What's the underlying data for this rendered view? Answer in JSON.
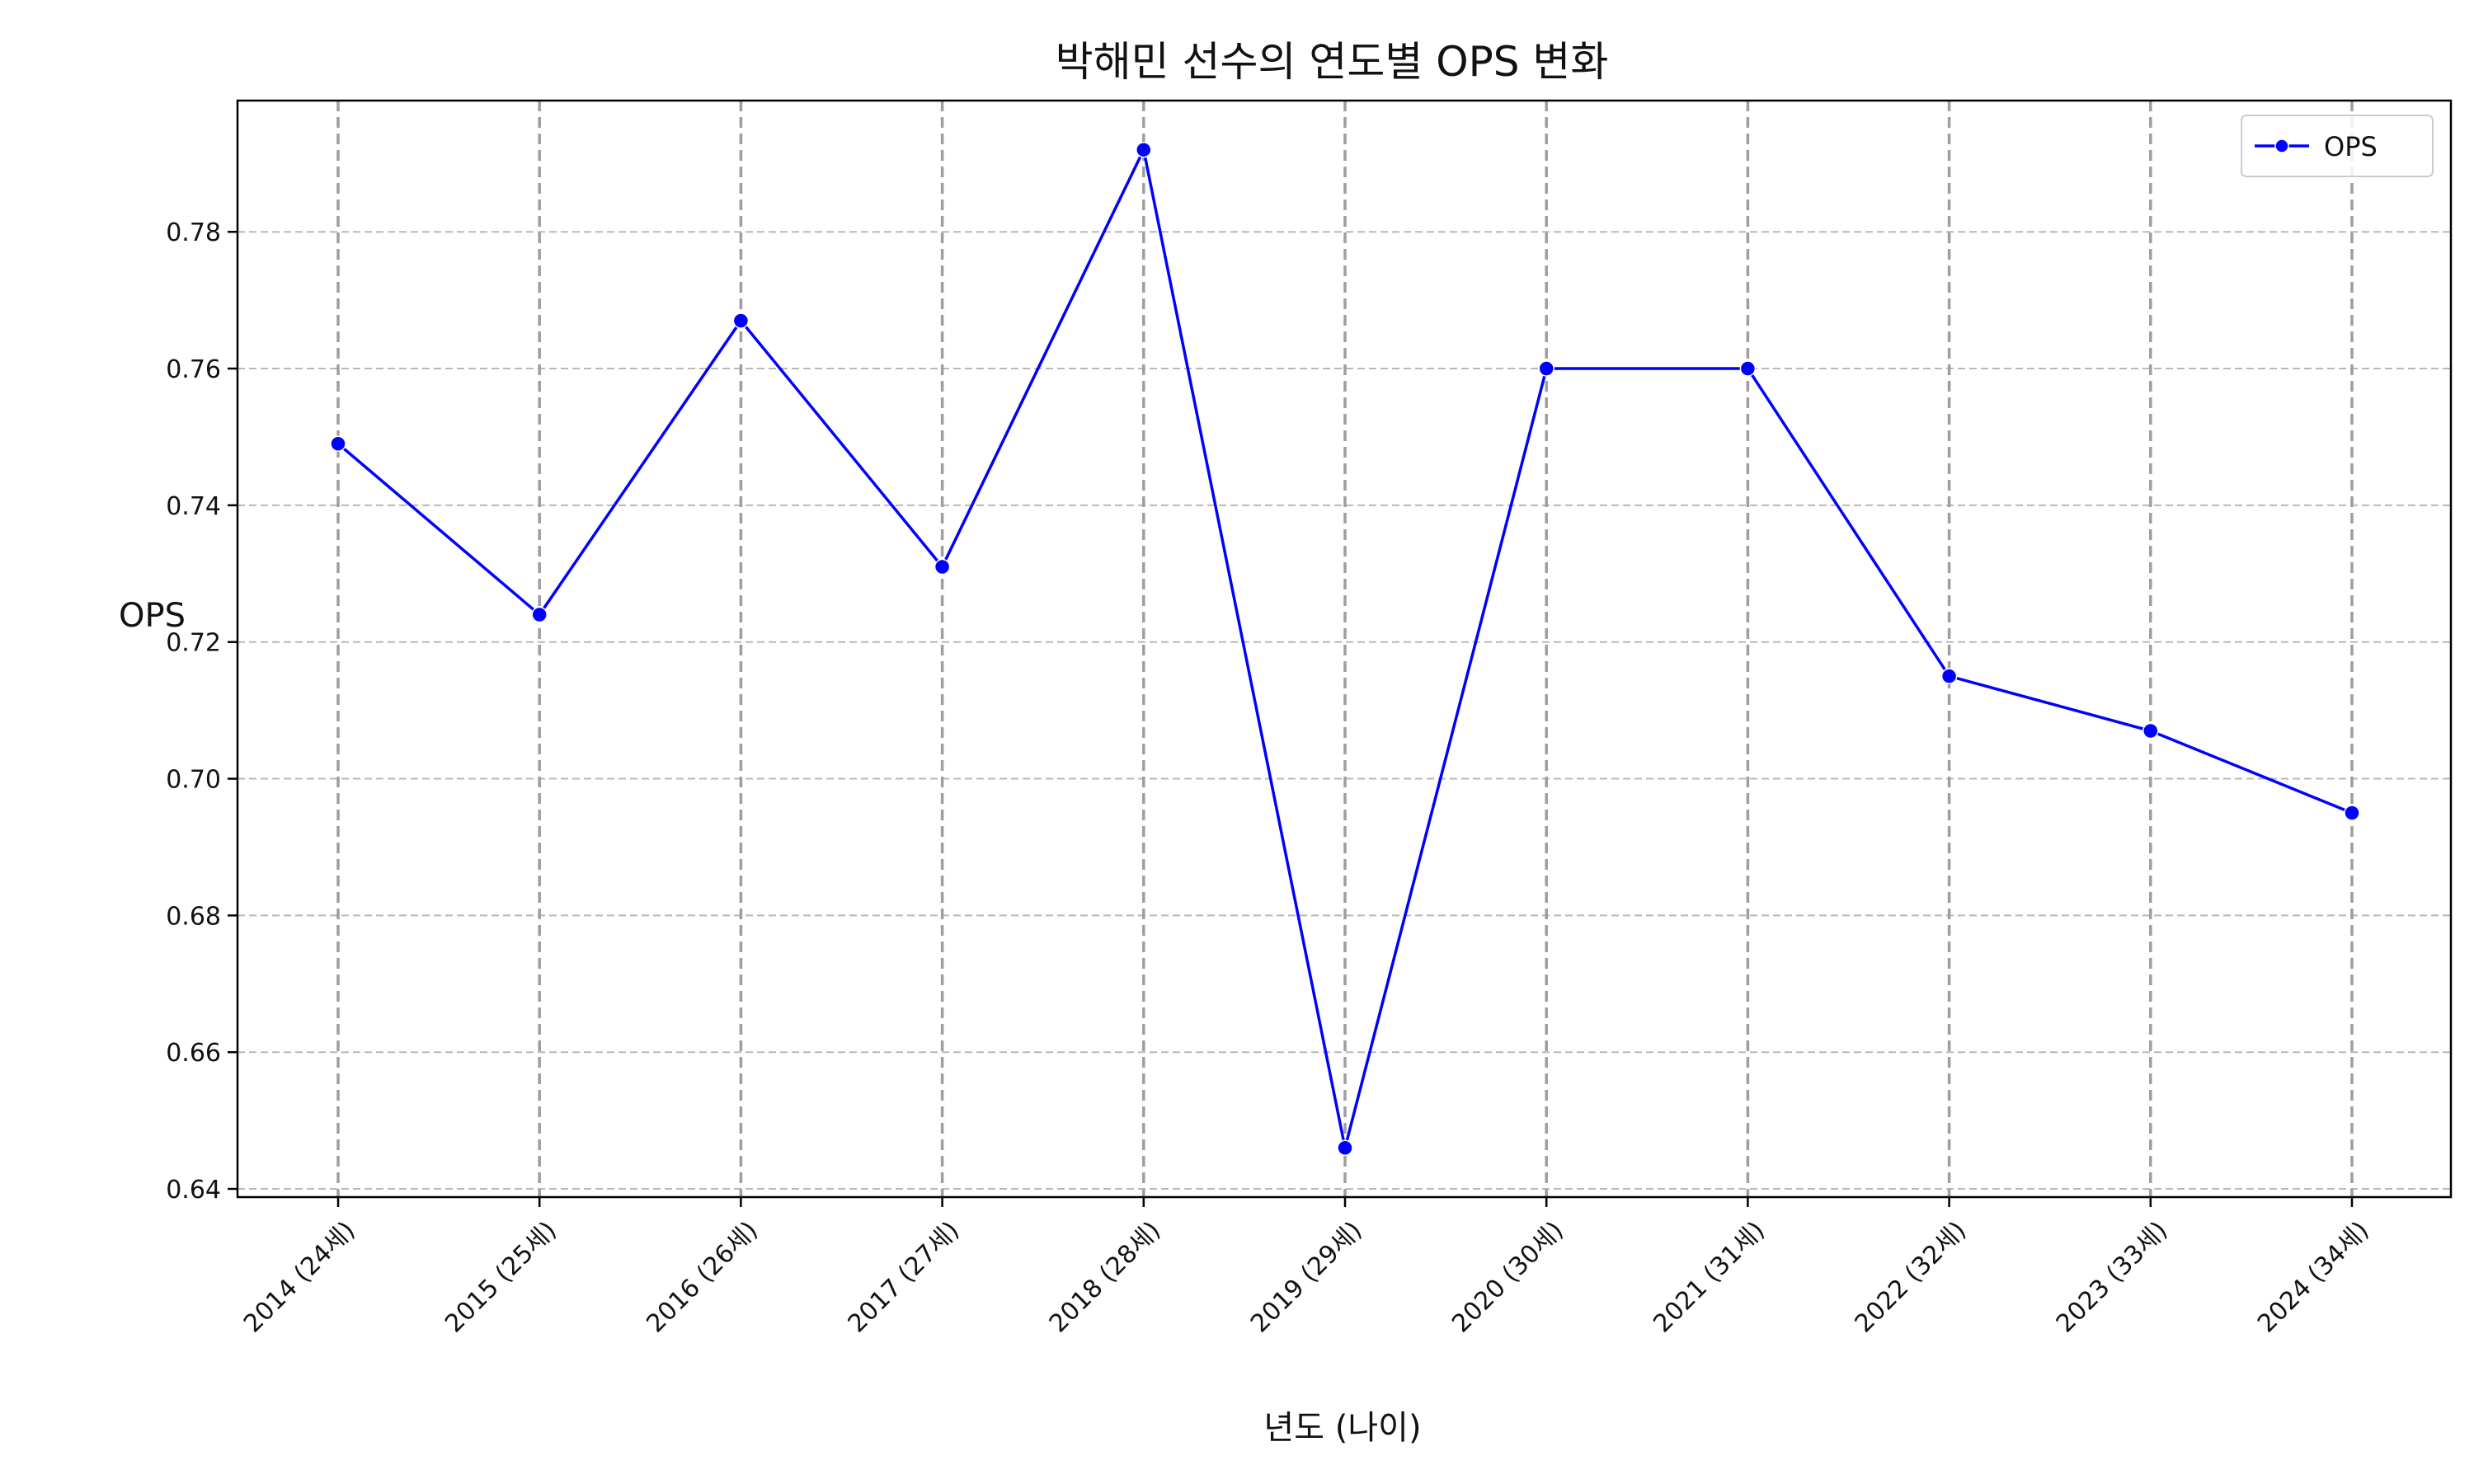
{
  "chart_data": {
    "type": "line",
    "title": "박해민 선수의 연도별 OPS 변화",
    "xlabel": "년도 (나이)",
    "ylabel": "OPS",
    "categories": [
      "2014 (24세)",
      "2015 (25세)",
      "2016 (26세)",
      "2017 (27세)",
      "2018 (28세)",
      "2019 (29세)",
      "2020 (30세)",
      "2021 (31세)",
      "2022 (32세)",
      "2023 (33세)",
      "2024 (34세)"
    ],
    "series": [
      {
        "name": "OPS",
        "color": "#0000ff",
        "values": [
          0.749,
          0.724,
          0.767,
          0.731,
          0.792,
          0.646,
          0.76,
          0.76,
          0.715,
          0.707,
          0.695
        ]
      }
    ],
    "ylim": [
      0.6388,
      0.7992
    ],
    "yticks": [
      0.64,
      0.66,
      0.68,
      0.7,
      0.72,
      0.74,
      0.76,
      0.78
    ],
    "ytick_labels": [
      "0.64",
      "0.66",
      "0.68",
      "0.70",
      "0.72",
      "0.74",
      "0.76",
      "0.78"
    ],
    "grid": true,
    "legend_position": "top-right"
  }
}
